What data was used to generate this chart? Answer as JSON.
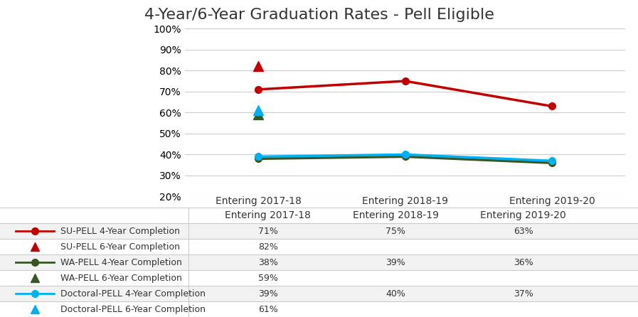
{
  "title": "4-Year/6-Year Graduation Rates - Pell Eligible",
  "x_labels": [
    "Entering 2017-18",
    "Entering 2018-19",
    "Entering 2019-20"
  ],
  "x_positions": [
    0,
    1,
    2
  ],
  "series": {
    "SU_4year": {
      "values": [
        71,
        75,
        63
      ],
      "x": [
        0,
        1,
        2
      ],
      "color": "#c00000",
      "marker": "o",
      "linewidth": 2.5
    },
    "SU_6year": {
      "values": [
        82
      ],
      "x": [
        0
      ],
      "color": "#c00000",
      "marker": "^"
    },
    "WA_4year": {
      "values": [
        38,
        39,
        36
      ],
      "x": [
        0,
        1,
        2
      ],
      "color": "#375623",
      "marker": "o",
      "linewidth": 2.5
    },
    "WA_6year": {
      "values": [
        59
      ],
      "x": [
        0
      ],
      "color": "#375623",
      "marker": "^"
    },
    "Doc_4year": {
      "values": [
        39,
        40,
        37
      ],
      "x": [
        0,
        1,
        2
      ],
      "color": "#00b0f0",
      "marker": "o",
      "linewidth": 2.5
    },
    "Doc_6year": {
      "values": [
        61
      ],
      "x": [
        0
      ],
      "color": "#00b0f0",
      "marker": "^"
    }
  },
  "table_header": [
    "",
    "Entering 2017-18",
    "Entering 2018-19",
    "Entering 2019-20"
  ],
  "table_rows": [
    [
      "SU-PELL 4-Year Completion",
      "71%",
      "75%",
      "63%"
    ],
    [
      "SU-PELL 6-Year Completion",
      "82%",
      "",
      ""
    ],
    [
      "WA-PELL 4-Year Completion",
      "38%",
      "39%",
      "36%"
    ],
    [
      "WA-PELL 6-Year Completion",
      "59%",
      "",
      ""
    ],
    [
      "Doctoral-PELL 4-Year Completion",
      "39%",
      "40%",
      "37%"
    ],
    [
      "Doctoral-PELL 6-Year Completion",
      "61%",
      "",
      ""
    ]
  ],
  "icon_specs": [
    {
      "color": "#c00000",
      "marker": "o",
      "has_line": true
    },
    {
      "color": "#c00000",
      "marker": "^",
      "has_line": false
    },
    {
      "color": "#375623",
      "marker": "o",
      "has_line": true
    },
    {
      "color": "#375623",
      "marker": "^",
      "has_line": false
    },
    {
      "color": "#00b0f0",
      "marker": "o",
      "has_line": true
    },
    {
      "color": "#00b0f0",
      "marker": "^",
      "has_line": false
    }
  ],
  "ylim": [
    20,
    100
  ],
  "yticks": [
    20,
    30,
    40,
    50,
    60,
    70,
    80,
    90,
    100
  ],
  "background_color": "#ffffff",
  "grid_color": "#cccccc",
  "title_fontsize": 16,
  "axis_fontsize": 10,
  "table_fontsize": 9
}
